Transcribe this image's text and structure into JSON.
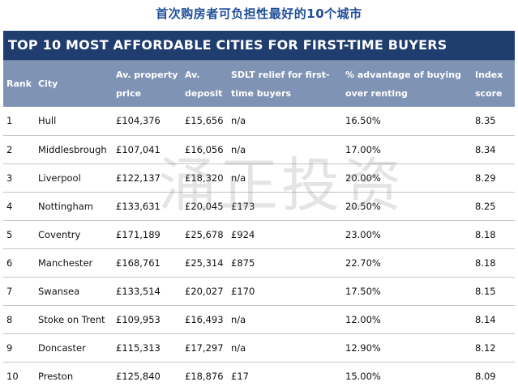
{
  "page_heading": "首次购房者可负担性最好的10个城市",
  "table": {
    "title": "TOP 10 MOST AFFORDABLE CITIES FOR FIRST-TIME BUYERS",
    "headers": [
      "Rank",
      "City",
      "Av. property price",
      "Av. deposit",
      "SDLT relief for first-time buyers",
      "% advantage of buying over renting",
      "Index score"
    ],
    "rows": [
      [
        "1",
        "Hull",
        "£104,376",
        "£15,656",
        "n/a",
        "16.50%",
        "8.35"
      ],
      [
        "2",
        "Middlesbrough",
        "£107,041",
        "£16,056",
        "n/a",
        "17.00%",
        "8.34"
      ],
      [
        "3",
        "Liverpool",
        "£122,137",
        "£18,320",
        "n/a",
        "20.00%",
        "8.29"
      ],
      [
        "4",
        "Nottingham",
        "£133,631",
        "£20,045",
        "£173",
        "20.50%",
        "8.25"
      ],
      [
        "5",
        "Coventry",
        "£171,189",
        "£25,678",
        "£924",
        "23.00%",
        "8.18"
      ],
      [
        "6",
        "Manchester",
        "£168,761",
        "£25,314",
        "£875",
        "22.70%",
        "8.18"
      ],
      [
        "7",
        "Swansea",
        "£133,514",
        "£20,027",
        "£170",
        "17.50%",
        "8.15"
      ],
      [
        "8",
        "Stoke on Trent",
        "£109,953",
        "£16,493",
        "n/a",
        "12.00%",
        "8.14"
      ],
      [
        "9",
        "Doncaster",
        "£115,313",
        "£17,297",
        "n/a",
        "12.90%",
        "8.12"
      ],
      [
        "10",
        "Preston",
        "£125,840",
        "£18,876",
        "£17",
        "15.00%",
        "8.09"
      ]
    ]
  },
  "watermark": "涌正投资"
}
